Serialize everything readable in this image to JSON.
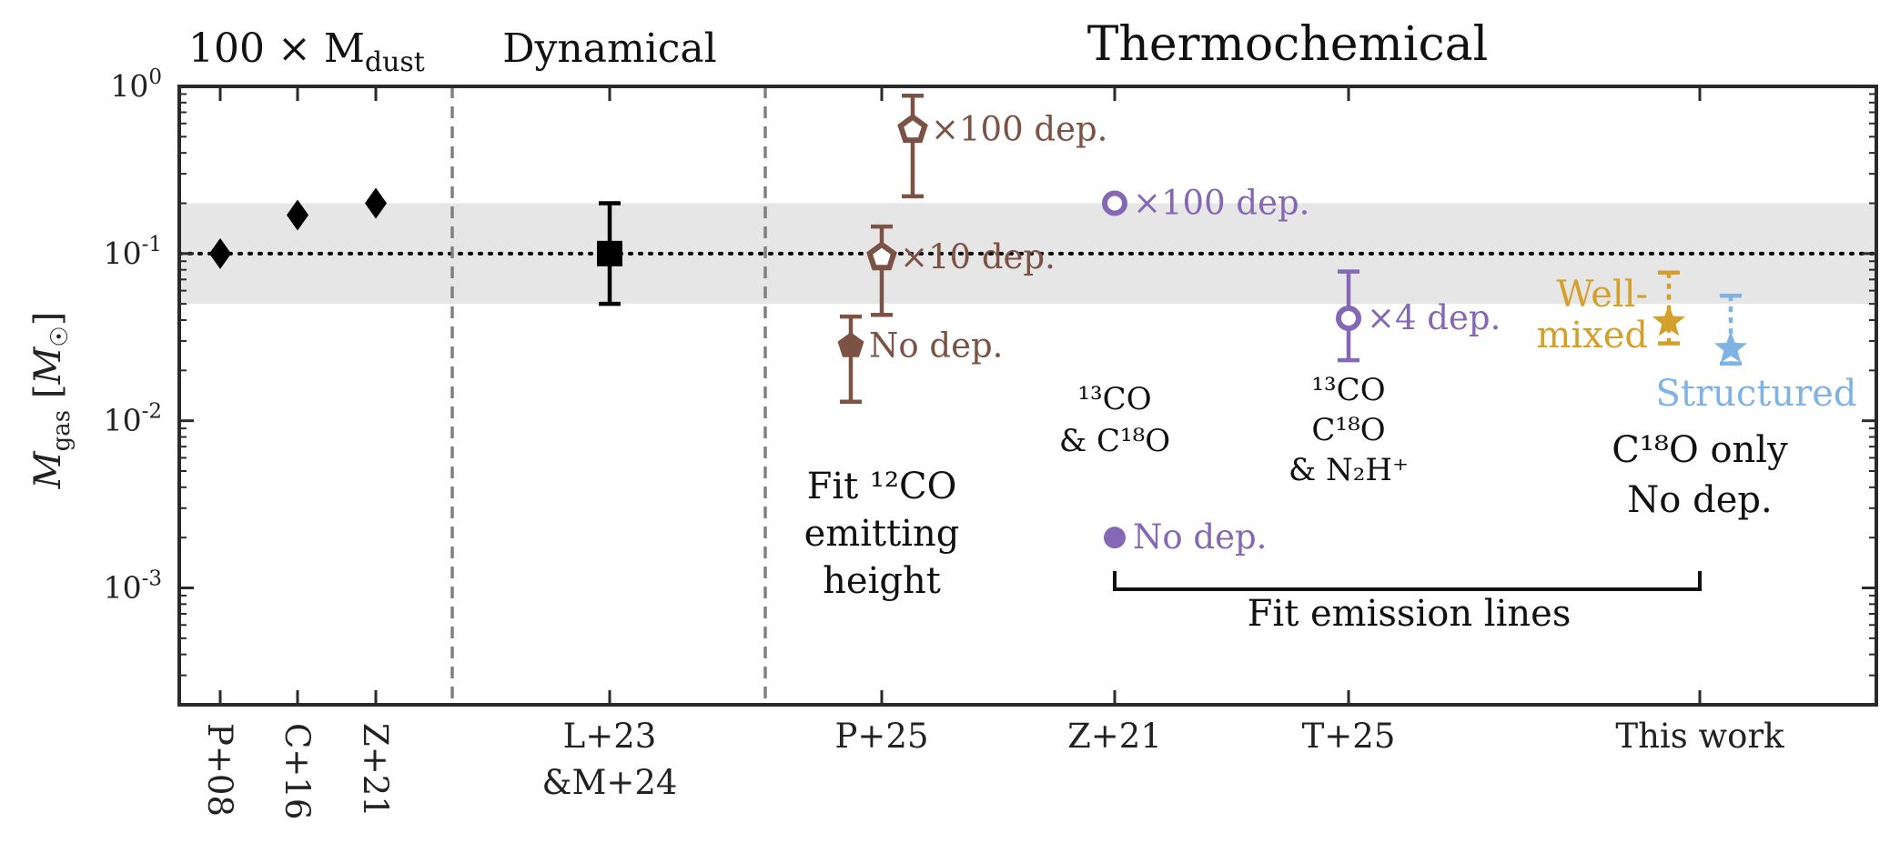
{
  "chart_data": {
    "type": "scatter",
    "ylabel": "M_gas [M☉]",
    "yscale": "log",
    "ylim": [
      0.0002,
      1
    ],
    "yticks": [
      {
        "base": "10",
        "exp": "0",
        "value": 1
      },
      {
        "base": "10",
        "exp": "-1",
        "value": 0.1
      },
      {
        "base": "10",
        "exp": "-2",
        "value": 0.01
      },
      {
        "base": "10",
        "exp": "-3",
        "value": 0.001
      }
    ],
    "reference_line": {
      "value": 0.1,
      "style": "dotted"
    },
    "shaded_band": {
      "ymin": 0.05,
      "ymax": 0.2
    },
    "sections": [
      {
        "id": "dust",
        "title": "100 × M",
        "title_sub": "dust"
      },
      {
        "id": "dyn",
        "title": "Dynamical"
      },
      {
        "id": "thermo",
        "title": "Thermochemical"
      }
    ],
    "categories": [
      {
        "id": "p08",
        "label": "P+08",
        "rotated": true
      },
      {
        "id": "c16",
        "label": "C+16",
        "rotated": true
      },
      {
        "id": "z21a",
        "label": "Z+21",
        "rotated": true
      },
      {
        "id": "lm",
        "label": "L+23",
        "label2": "&M+24",
        "rotated": false
      },
      {
        "id": "p25",
        "label": "P+25",
        "rotated": false
      },
      {
        "id": "z21",
        "label": "Z+21",
        "rotated": false
      },
      {
        "id": "t25",
        "label": "T+25",
        "rotated": false
      },
      {
        "id": "tw",
        "label": "This work",
        "rotated": false
      }
    ],
    "points": [
      {
        "cat": "p08",
        "y": 0.1,
        "marker": "diamond",
        "color": "#000000"
      },
      {
        "cat": "c16",
        "y": 0.17,
        "marker": "diamond",
        "color": "#000000"
      },
      {
        "cat": "z21a",
        "y": 0.2,
        "marker": "diamond",
        "color": "#000000"
      },
      {
        "cat": "lm",
        "y": 0.1,
        "lo": 0.05,
        "hi": 0.2,
        "marker": "square",
        "color": "#000000"
      },
      {
        "cat": "p25",
        "dx": -0.25,
        "y": 0.028,
        "lo": 0.013,
        "hi": 0.042,
        "marker": "pentagon",
        "filled": true,
        "color": "#7b5244",
        "label": "No dep."
      },
      {
        "cat": "p25",
        "dx": 0.0,
        "y": 0.095,
        "lo": 0.043,
        "hi": 0.145,
        "marker": "pentagon",
        "filled": false,
        "color": "#7b5244",
        "label": "×10 dep."
      },
      {
        "cat": "p25",
        "dx": 0.25,
        "y": 0.55,
        "lo": 0.22,
        "hi": 0.88,
        "marker": "pentagon",
        "filled": false,
        "color": "#7b5244",
        "label": "×100 dep."
      },
      {
        "cat": "z21",
        "y": 0.2,
        "marker": "circle",
        "filled": false,
        "color": "#8467b5",
        "label": "×100 dep."
      },
      {
        "cat": "z21",
        "y": 0.002,
        "marker": "circle",
        "filled": true,
        "color": "#8467b5",
        "label": "No dep."
      },
      {
        "cat": "t25",
        "y": 0.041,
        "lo": 0.023,
        "hi": 0.078,
        "marker": "circle",
        "filled": false,
        "color": "#8467b5",
        "label": "×4 dep."
      },
      {
        "cat": "tw",
        "dx": -0.25,
        "y": 0.039,
        "lo": 0.029,
        "hi": 0.077,
        "marker": "star",
        "filled": true,
        "color": "#d4a02c",
        "dotted_err": true,
        "label": "Well-",
        "label2": "mixed"
      },
      {
        "cat": "tw",
        "dx": 0.25,
        "y": 0.027,
        "lo": 0.022,
        "hi": 0.056,
        "marker": "star",
        "filled": true,
        "color": "#7fb3e3",
        "dotted_err": true,
        "label": "Structured"
      }
    ],
    "annotations": {
      "p25": [
        "Fit ¹²CO",
        "emitting",
        "height"
      ],
      "z21": [
        "¹³CO",
        "& C¹⁸O"
      ],
      "t25": [
        "¹³CO",
        "C¹⁸O",
        "& N₂H⁺"
      ],
      "tw": [
        "C¹⁸O only",
        "No dep."
      ],
      "bracket": "Fit emission lines"
    },
    "colors": {
      "frame": "#2a2a2a",
      "band": "#e6e6e6",
      "divider": "#808080"
    }
  }
}
